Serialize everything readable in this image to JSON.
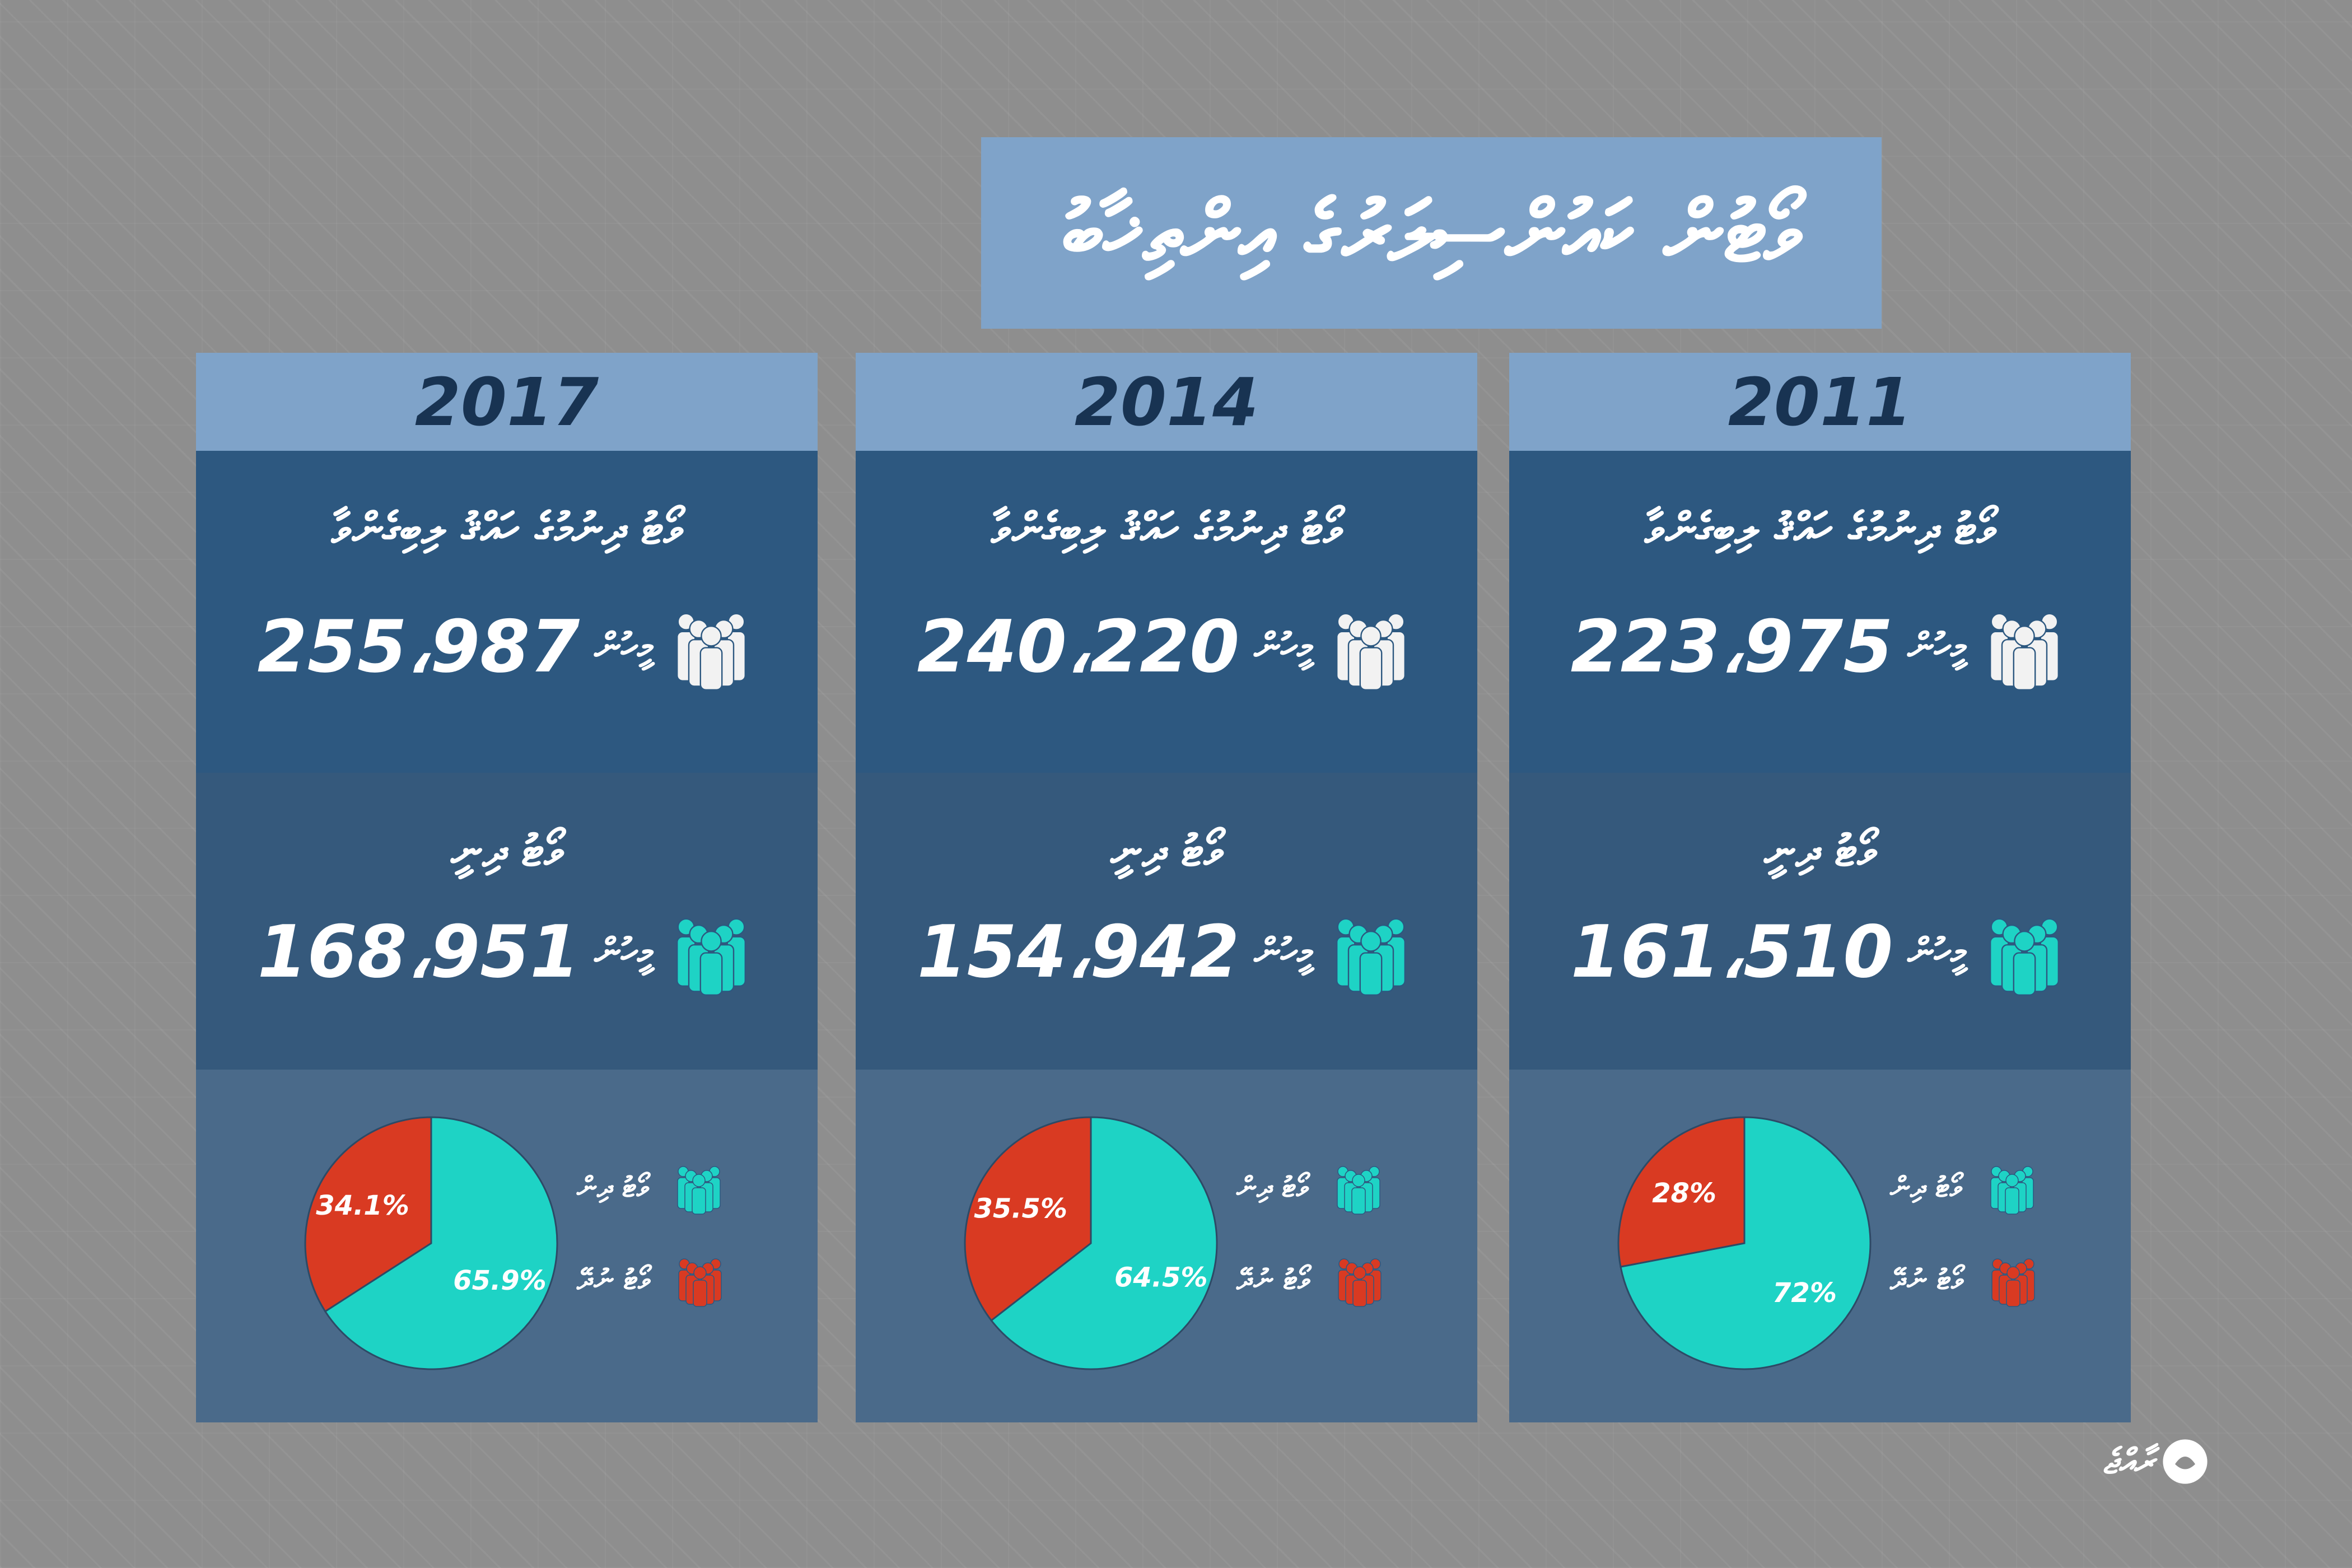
{
  "title": "ވޯޓުން ކައުންސިލަރުގެ އިންތިޚާބު",
  "logo_text": "ރާއްޖެ",
  "colors": {
    "header_bg": "#7fa3c9",
    "panel_dark": "#2d5880",
    "panel_mid": "#35597c",
    "panel_light": "#4a6a8a",
    "voted": "#1ed3c5",
    "not_voted": "#d93a22",
    "icon_white": "#f2f2f2"
  },
  "icons": {
    "eligible": "people-group-icon",
    "voted": "people-group-icon",
    "not_voted": "people-group-icon"
  },
  "chart_data": [
    {
      "type": "pie",
      "year": "2017",
      "eligible_label": "ވޯޓު ދިނުމުގެ ހައްޤު ލިބިގެންވާ",
      "eligible_value": "255،987",
      "voted_label": "ވޯޓު ދިނީ",
      "voted_value": "168،951",
      "unit": "މީހުން",
      "slices": [
        {
          "label": "ވޯޓު ދިން",
          "value": 65.9,
          "text": "65.9%",
          "color": "#1ed3c5"
        },
        {
          "label": "ވޯޓު ނުދޭ",
          "value": 34.1,
          "text": "34.1%",
          "color": "#d93a22"
        }
      ],
      "legend": [
        {
          "label": "ވޯޓު ދިން",
          "color": "#1ed3c5"
        },
        {
          "label": "ވޯޓު ނުދޭ",
          "color": "#d93a22"
        }
      ]
    },
    {
      "type": "pie",
      "year": "2014",
      "eligible_label": "ވޯޓު ދިނުމުގެ ހައްޤު ލިބިގެންވާ",
      "eligible_value": "240،220",
      "voted_label": "ވޯޓު ދިނީ",
      "voted_value": "154،942",
      "unit": "މީހުން",
      "slices": [
        {
          "label": "ވޯޓު ދިން",
          "value": 64.5,
          "text": "64.5%",
          "color": "#1ed3c5"
        },
        {
          "label": "ވޯޓު ނުދޭ",
          "value": 35.5,
          "text": "35.5%",
          "color": "#d93a22"
        }
      ],
      "legend": [
        {
          "label": "ވޯޓު ދިން",
          "color": "#1ed3c5"
        },
        {
          "label": "ވޯޓު ނުދޭ",
          "color": "#d93a22"
        }
      ]
    },
    {
      "type": "pie",
      "year": "2011",
      "eligible_label": "ވޯޓު ދިނުމުގެ ހައްޤު ލިބިގެންވާ",
      "eligible_value": "223،975",
      "voted_label": "ވޯޓު ދިނީ",
      "voted_value": "161،510",
      "unit": "މީހުން",
      "slices": [
        {
          "label": "ވޯޓު ދިން",
          "value": 72,
          "text": "72%",
          "color": "#1ed3c5"
        },
        {
          "label": "ވޯޓު ނުދޭ",
          "value": 28,
          "text": "28%",
          "color": "#d93a22"
        }
      ],
      "legend": [
        {
          "label": "ވޯޓު ދިން",
          "color": "#1ed3c5"
        },
        {
          "label": "ވޯޓު ނުދޭ",
          "color": "#d93a22"
        }
      ]
    }
  ]
}
